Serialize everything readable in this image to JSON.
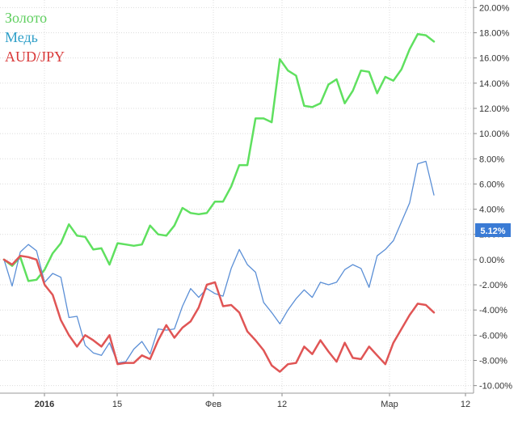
{
  "chart_data": {
    "type": "line",
    "title": "",
    "xlabel": "",
    "ylabel": "",
    "x_tick_labels": [
      "2016",
      "15",
      "Фев",
      "12",
      "Мар",
      "12"
    ],
    "y_ticks": [
      20,
      18,
      16,
      14,
      12,
      10,
      8,
      6,
      4,
      2,
      0,
      -2,
      -4,
      -6,
      -8,
      -10
    ],
    "y_tick_labels": [
      "20.00%",
      "18.00%",
      "16.00%",
      "14.00%",
      "12.00%",
      "10.00%",
      "8.00%",
      "6.00%",
      "4.00%",
      "2.00%",
      "0.00%",
      "-2.00%",
      "-4.00%",
      "-6.00%",
      "-8.00%",
      "-10.00%"
    ],
    "ylim": [
      -10.6,
      20.6
    ],
    "grid": true,
    "legend_position": "top-left",
    "current_value_badge": "5.12%",
    "series": [
      {
        "name": "Золото",
        "color": "#5fe05f",
        "values": [
          0.0,
          -0.5,
          0.2,
          -1.7,
          -1.6,
          -0.8,
          0.5,
          1.3,
          2.8,
          1.9,
          1.8,
          0.8,
          0.9,
          -0.4,
          1.3,
          1.2,
          1.1,
          1.2,
          2.7,
          2.0,
          1.9,
          2.7,
          4.1,
          3.7,
          3.6,
          3.7,
          4.6,
          4.6,
          5.8,
          7.5,
          7.5,
          11.2,
          11.2,
          10.9,
          15.9,
          15.0,
          14.6,
          12.2,
          12.1,
          12.4,
          13.9,
          14.3,
          12.4,
          13.4,
          15.0,
          14.9,
          13.2,
          14.5,
          14.2,
          15.1,
          16.7,
          17.9,
          17.8,
          17.3
        ]
      },
      {
        "name": "Медь",
        "color": "#5b8fd6",
        "values": [
          0.0,
          -2.1,
          0.6,
          1.2,
          0.7,
          -1.8,
          -1.1,
          -1.4,
          -4.6,
          -4.5,
          -6.8,
          -7.4,
          -7.6,
          -6.6,
          -8.2,
          -8.1,
          -7.1,
          -6.5,
          -7.5,
          -5.5,
          -5.6,
          -5.5,
          -3.7,
          -2.3,
          -3.0,
          -2.3,
          -2.7,
          -2.9,
          -0.7,
          0.8,
          -0.4,
          -1.0,
          -3.4,
          -4.2,
          -5.1,
          -4.0,
          -3.1,
          -2.4,
          -3.0,
          -1.8,
          -2.0,
          -1.8,
          -0.8,
          -0.4,
          -0.7,
          -2.2,
          0.3,
          0.8,
          1.5,
          3.0,
          4.5,
          7.6,
          7.8,
          5.12
        ]
      },
      {
        "name": "AUD/JPY",
        "color": "#e05555",
        "values": [
          0.0,
          -0.4,
          0.3,
          0.2,
          0.0,
          -2.0,
          -2.8,
          -4.8,
          -6.0,
          -6.9,
          -6.0,
          -6.4,
          -6.9,
          -6.0,
          -8.3,
          -8.2,
          -8.2,
          -7.6,
          -7.9,
          -6.4,
          -5.2,
          -6.2,
          -5.4,
          -4.9,
          -3.8,
          -2.0,
          -1.8,
          -3.7,
          -3.6,
          -4.2,
          -5.7,
          -6.4,
          -7.2,
          -8.4,
          -8.9,
          -8.3,
          -8.2,
          -6.9,
          -7.5,
          -6.4,
          -7.3,
          -8.1,
          -6.6,
          -7.8,
          -7.9,
          -6.9,
          -7.6,
          -8.3,
          -6.6,
          -5.5,
          -4.4,
          -3.5,
          -3.6,
          -4.2
        ]
      }
    ]
  }
}
